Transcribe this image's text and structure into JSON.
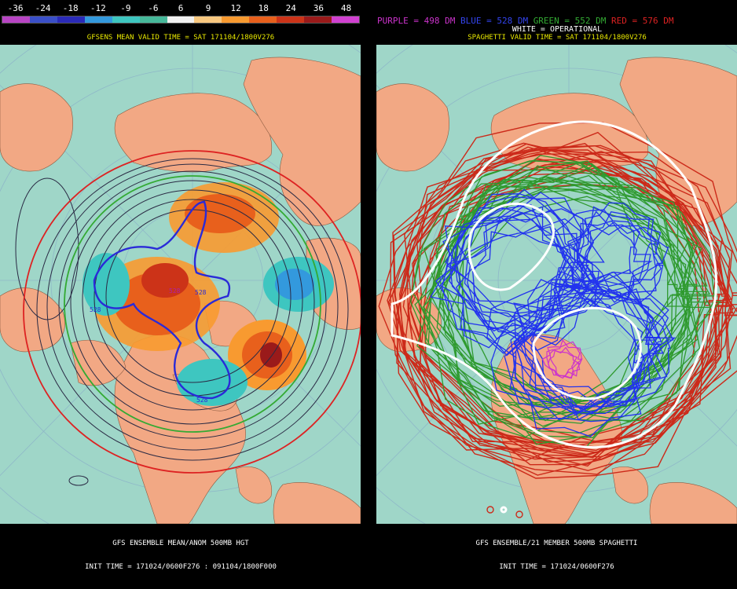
{
  "colorbar": {
    "labels": [
      "-36",
      "-24",
      "-18",
      "-12",
      "-9",
      "-6",
      "6",
      "9",
      "12",
      "18",
      "24",
      "36",
      "48"
    ],
    "colors": [
      "#b844c4",
      "#3a4fc8",
      "#2a2ab8",
      "#3399dd",
      "#3ec6c0",
      "#46b89a",
      "#f0f0f0",
      "#f8c880",
      "#f89a30",
      "#e8601c",
      "#cc3318",
      "#9a1a1a",
      "#d040d0"
    ]
  },
  "left_panel": {
    "title": "GFSENS MEAN VALID TIME = SAT 171104/1800V276",
    "contour_label": "528",
    "bottom_line1": "GFS ENSEMBLE MEAN/ANOM 500MB HGT",
    "bottom_line2": "INIT TIME = 171024/0600F276 : 091104/1800F000"
  },
  "right_panel": {
    "legend": {
      "purple": "PURPLE = 498 DM",
      "blue": "BLUE = 528 DM",
      "green": "GREEN = 552 DM",
      "red": "RED = 576 DM"
    },
    "subtitle": "WHITE = OPERATIONAL",
    "title": "SPAGHETTI VALID TIME = SAT 171104/1800V276",
    "bottom_line1": "GFS ENSEMBLE/21 MEMBER 500MB SPAGHETTI",
    "bottom_line2": "INIT TIME = 171024/0600F276"
  },
  "colors": {
    "ocean": "#9fd6c8",
    "land": "#f2a884",
    "grid": "#8fb8c8",
    "legend_purple": "#cc33cc",
    "legend_blue": "#3344ee",
    "legend_green": "#33aa33",
    "legend_red": "#dd2222",
    "title_yellow": "#e8e800"
  }
}
